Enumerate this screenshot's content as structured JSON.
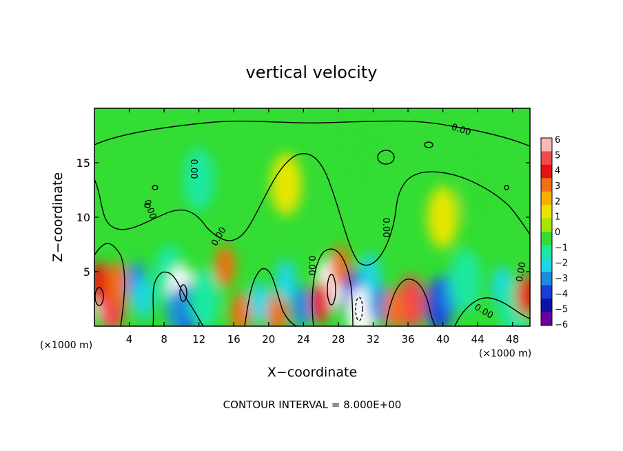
{
  "chart_data": {
    "type": "heatmap",
    "title": "vertical velocity",
    "xlabel": "X−coordinate",
    "ylabel": "Z−coordinate",
    "x_unit": "(×1000 m)",
    "xlim": [
      0,
      50
    ],
    "ylim": [
      0,
      20
    ],
    "x_ticks": [
      4,
      8,
      12,
      16,
      20,
      24,
      28,
      32,
      36,
      40,
      44,
      48
    ],
    "y_ticks": [
      5,
      10,
      15
    ],
    "colorbar": {
      "ticks": [
        6,
        5,
        4,
        3,
        2,
        1,
        0,
        -1,
        -2,
        -3,
        -4,
        -5,
        -6
      ],
      "tick_labels": [
        "6",
        "5",
        "4",
        "3",
        "2",
        "1",
        "0",
        "−1",
        "−2",
        "−3",
        "−4",
        "−5",
        "−6"
      ],
      "colors": [
        "#f8b8b8",
        "#f44a4a",
        "#e81010",
        "#f07010",
        "#f6b000",
        "#e6e600",
        "#a6e600",
        "#33dd33",
        "#1ce8a0",
        "#1ad8e8",
        "#1a8ce0",
        "#1a3cd8",
        "#1010a8",
        "#6a00a0"
      ]
    },
    "contour_interval_text": "CONTOUR INTERVAL = 8.000E+00",
    "contour_labels": [
      "0.00",
      "0.00",
      "0.00",
      "0.00",
      "0.00",
      "0.00",
      "0.00",
      "0.00"
    ],
    "cells": [
      {
        "x": 1.2,
        "z": 2.8,
        "v": 6
      },
      {
        "x": 2.0,
        "z": 2.0,
        "v": 5
      },
      {
        "x": 0.6,
        "z": 4.0,
        "v": 4
      },
      {
        "x": 2.6,
        "z": 4.0,
        "v": 3
      },
      {
        "x": 4.8,
        "z": 4.0,
        "v": -4
      },
      {
        "x": 5.6,
        "z": 2.6,
        "v": -3
      },
      {
        "x": 8.6,
        "z": 4.6,
        "v": -2
      },
      {
        "x": 10.0,
        "z": 3.0,
        "v": 6
      },
      {
        "x": 10.8,
        "z": 1.5,
        "v": -5
      },
      {
        "x": 9.5,
        "z": 1.5,
        "v": -4
      },
      {
        "x": 12.6,
        "z": 2.5,
        "v": -2
      },
      {
        "x": 15.0,
        "z": 5.5,
        "v": 3
      },
      {
        "x": 16.8,
        "z": 1.2,
        "v": 3
      },
      {
        "x": 19.0,
        "z": 2.2,
        "v": -3
      },
      {
        "x": 21.0,
        "z": 1.2,
        "v": 3
      },
      {
        "x": 22.0,
        "z": 4.2,
        "v": -3
      },
      {
        "x": 23.8,
        "z": 1.8,
        "v": -4
      },
      {
        "x": 27.0,
        "z": 3.8,
        "v": 6
      },
      {
        "x": 26.0,
        "z": 2.2,
        "v": 4
      },
      {
        "x": 28.2,
        "z": 5.5,
        "v": 3
      },
      {
        "x": 30.0,
        "z": 2.6,
        "v": -5
      },
      {
        "x": 30.6,
        "z": 1.2,
        "v": 6
      },
      {
        "x": 32.6,
        "z": 2.2,
        "v": -4
      },
      {
        "x": 31.6,
        "z": 4.8,
        "v": -3
      },
      {
        "x": 36.4,
        "z": 2.2,
        "v": 5
      },
      {
        "x": 34.4,
        "z": 1.6,
        "v": 3
      },
      {
        "x": 39.6,
        "z": 2.0,
        "v": -5
      },
      {
        "x": 40.8,
        "z": 3.0,
        "v": -4
      },
      {
        "x": 42.6,
        "z": 4.2,
        "v": -2
      },
      {
        "x": 46.8,
        "z": 3.6,
        "v": -3
      },
      {
        "x": 48.2,
        "z": 1.5,
        "v": -2
      },
      {
        "x": 49.6,
        "z": 2.8,
        "v": 4
      },
      {
        "x": 12.0,
        "z": 13.5,
        "v": -2
      },
      {
        "x": 31.0,
        "z": 17.0,
        "v": -1
      },
      {
        "x": 44.0,
        "z": 12.0,
        "v": -1
      },
      {
        "x": 22.0,
        "z": 13.0,
        "v": 1
      },
      {
        "x": 40.0,
        "z": 10.0,
        "v": 1
      }
    ]
  }
}
